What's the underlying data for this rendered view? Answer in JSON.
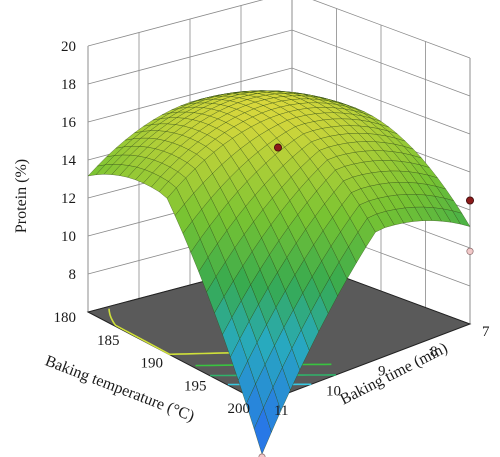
{
  "chart_data": {
    "type": "surface3d",
    "title": "",
    "zlabel": "Protein (%)",
    "xlabel": "Baking temperature (°C)",
    "ylabel": "Baking time (min)",
    "z_ticks": [
      "8",
      "10",
      "12",
      "14",
      "16",
      "18",
      "20"
    ],
    "x_ticks": [
      "180",
      "185",
      "190",
      "195",
      "200"
    ],
    "y_ticks": [
      "7",
      "8",
      "9",
      "10",
      "11"
    ],
    "zlim": [
      6,
      20
    ],
    "xlim": [
      180,
      200
    ],
    "ylim": [
      7,
      11
    ],
    "surface_corners": [
      {
        "temperature": 180,
        "time": 11,
        "protein": 12.6
      },
      {
        "temperature": 180,
        "time": 7,
        "protein": 12.4
      },
      {
        "temperature": 200,
        "time": 7,
        "protein": 12.6
      },
      {
        "temperature": 200,
        "time": 11,
        "protein": 4.4
      }
    ],
    "surface_peak": {
      "temperature": 187,
      "time": 8.8,
      "protein": 16.8
    },
    "design_points": [
      {
        "temperature": 190,
        "time": 9,
        "protein": 15.3
      },
      {
        "temperature": 200,
        "time": 7,
        "protein": 12.5
      }
    ],
    "contour_floor": true,
    "colors": {
      "surface_high": "#c8d23a",
      "surface_mid": "#4fae3a",
      "surface_low": "#1f8cd6",
      "floor": "#5a5a5a",
      "grid": "#8a8a8a",
      "point": "#8b1a1a"
    }
  }
}
